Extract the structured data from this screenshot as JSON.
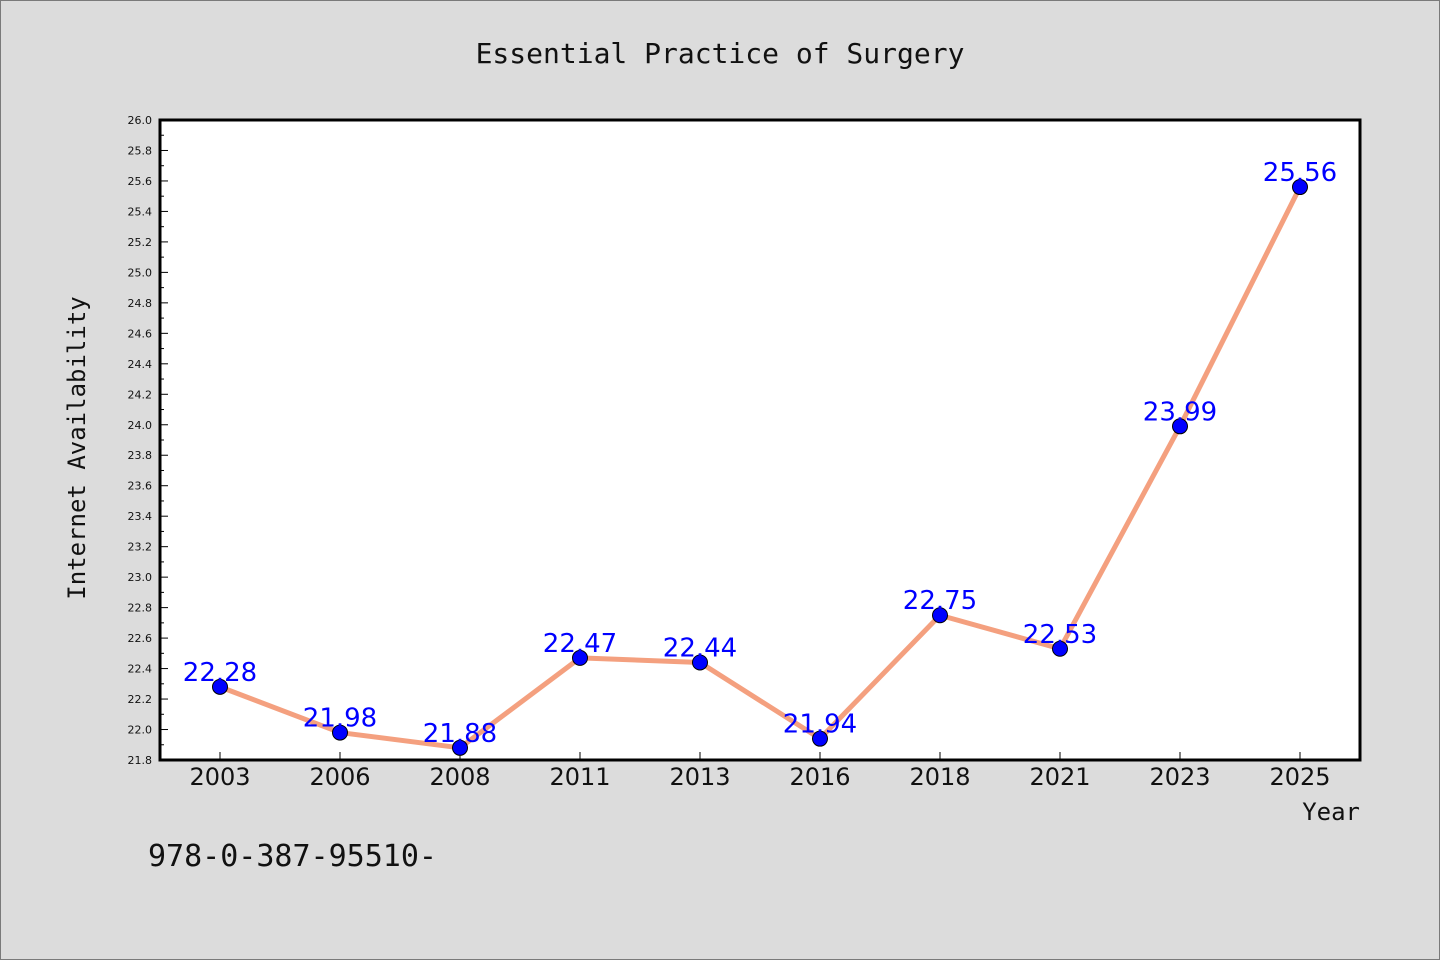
{
  "chart_data": {
    "type": "line",
    "title": "Essential Practice of Surgery",
    "xlabel": "Year",
    "ylabel": "Internet Availability",
    "categories": [
      "2003",
      "2006",
      "2008",
      "2011",
      "2013",
      "2016",
      "2018",
      "2021",
      "2023",
      "2025"
    ],
    "series": [
      {
        "values": [
          22.28,
          21.98,
          21.88,
          22.47,
          22.44,
          21.94,
          22.75,
          22.53,
          23.99,
          25.56
        ],
        "line_color": "#f4a07f",
        "marker_color": "#0000ff"
      }
    ],
    "data_labels": [
      "22.28",
      "21.98",
      "21.88",
      "22.47",
      "22.44",
      "21.94",
      "22.75",
      "22.53",
      "23.99",
      "25.56"
    ],
    "ylim": [
      21.8,
      26.0
    ],
    "yticks": [
      "21.8",
      "22.0",
      "22.2",
      "22.4",
      "22.6",
      "22.8",
      "23.0",
      "23.2",
      "23.4",
      "23.6",
      "23.8",
      "24.0",
      "24.2",
      "24.4",
      "24.6",
      "24.8",
      "25.0",
      "25.2",
      "25.4",
      "25.6",
      "25.8",
      "26.0"
    ],
    "grid": false,
    "legend": "none",
    "colors": {
      "background": "#dcdcdc",
      "plot_background": "#ffffff",
      "label_color": "#0000ff"
    }
  },
  "footer": {
    "text": "978-0-387-95510-"
  }
}
